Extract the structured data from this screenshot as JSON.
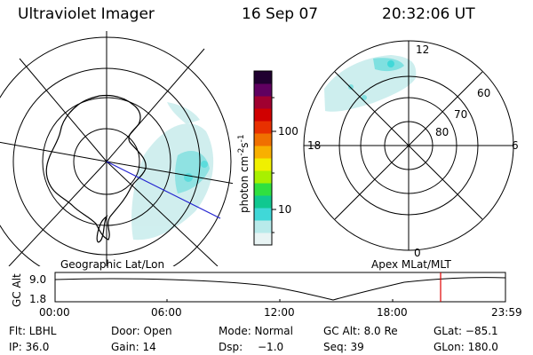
{
  "header": {
    "instrument": "Ultraviolet Imager",
    "date": "16 Sep 07",
    "time": "20:32:06 UT"
  },
  "colorbar": {
    "unit": "photon cm",
    "exp1": "-2",
    "unit2": "s",
    "exp2": "-1",
    "tick_100": "100",
    "tick_10": "10",
    "colors": [
      "#e8f4f4",
      "#b8eaea",
      "#40d8d8",
      "#10c890",
      "#30e040",
      "#a8f000",
      "#f0f000",
      "#f8b000",
      "#f07000",
      "#e83000",
      "#d00000",
      "#a00030",
      "#600060",
      "#200030"
    ]
  },
  "geo_plot": {
    "label": "Geographic Lat/Lon"
  },
  "apex_plot": {
    "label": "Apex  MLat/MLT",
    "lat_labels": [
      "60",
      "70",
      "80"
    ],
    "mlt_12": "12",
    "mlt_18": "18",
    "mlt_6": "6",
    "mlt_0": "0"
  },
  "altitude_plot": {
    "axis_title": "GC Alt",
    "ytick_top": "9.0",
    "ytick_bottom": "1.8",
    "xticks": [
      "00:00",
      "06:00",
      "12:00",
      "18:00",
      "23:59"
    ],
    "current_time_marker_fraction": 0.856
  },
  "info": {
    "flt": "Flt: LBHL",
    "door": "Door: Open",
    "mode": "Mode: Normal",
    "gcalt": "GC Alt: 8.0 Re",
    "glat": "GLat: −85.1",
    "ip": "IP: 36.0",
    "gain": "Gain: 14",
    "dsp_label": "Dsp:",
    "dsp_value": "−1.0",
    "seq": "Seq: 39",
    "glon": "GLon: 180.0"
  }
}
